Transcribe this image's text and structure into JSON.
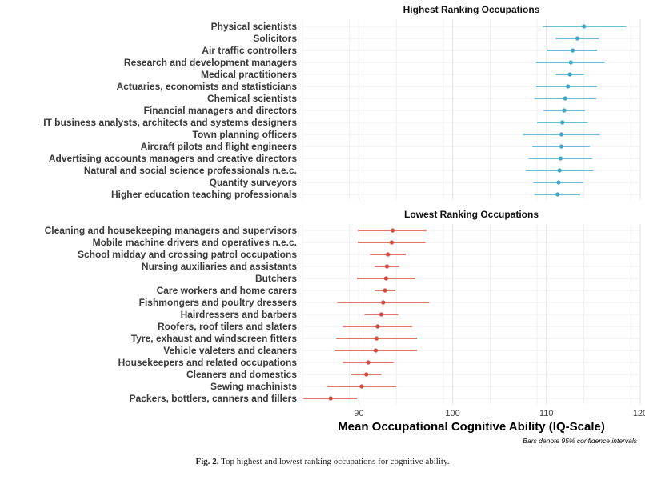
{
  "figure": {
    "caption_label": "Fig. 2.",
    "caption_text": "Top highest and lowest ranking occupations for cognitive ability.",
    "note": "Bars denote 95% confidence intervals"
  },
  "chart_data": {
    "type": "scatter",
    "xlabel": "Mean Occupational Cognitive Ability (IQ-Scale)",
    "xlim": [
      84,
      120
    ],
    "xticks": [
      90,
      100,
      110,
      120
    ],
    "grid": true,
    "panels": [
      {
        "title": "Highest Ranking Occupations",
        "color": "#3aa8c9",
        "rows": [
          {
            "label": "Physical scientists",
            "mean": 114.0,
            "low": 109.6,
            "high": 118.5
          },
          {
            "label": "Solicitors",
            "mean": 113.3,
            "low": 111.0,
            "high": 115.6
          },
          {
            "label": "Air traffic controllers",
            "mean": 112.8,
            "low": 110.1,
            "high": 115.4
          },
          {
            "label": "Research and development managers",
            "mean": 112.6,
            "low": 108.9,
            "high": 116.2
          },
          {
            "label": "Medical practitioners",
            "mean": 112.5,
            "low": 111.0,
            "high": 114.0
          },
          {
            "label": "Actuaries, economists and statisticians",
            "mean": 112.3,
            "low": 108.9,
            "high": 115.4
          },
          {
            "label": "Chemical scientists",
            "mean": 112.0,
            "low": 108.7,
            "high": 115.3
          },
          {
            "label": "Financial managers and directors",
            "mean": 111.9,
            "low": 109.7,
            "high": 114.1
          },
          {
            "label": "IT business analysts, architects and systems designers",
            "mean": 111.7,
            "low": 109.0,
            "high": 114.4
          },
          {
            "label": "Town planning officers",
            "mean": 111.6,
            "low": 107.5,
            "high": 115.7
          },
          {
            "label": "Aircraft pilots and flight engineers",
            "mean": 111.6,
            "low": 108.5,
            "high": 114.6
          },
          {
            "label": "Advertising accounts managers and creative directors",
            "mean": 111.5,
            "low": 108.1,
            "high": 114.9
          },
          {
            "label": "Natural and social science professionals n.e.c.",
            "mean": 111.4,
            "low": 107.8,
            "high": 115.0
          },
          {
            "label": "Quantity surveyors",
            "mean": 111.3,
            "low": 108.6,
            "high": 113.9
          },
          {
            "label": "Higher education teaching professionals",
            "mean": 111.2,
            "low": 108.7,
            "high": 113.6
          }
        ]
      },
      {
        "title": "Lowest Ranking Occupations",
        "color": "#d9493a",
        "rows": [
          {
            "label": "Cleaning and housekeeping managers and supervisors",
            "mean": 93.6,
            "low": 89.9,
            "high": 97.2
          },
          {
            "label": "Mobile machine drivers and operatives n.e.c.",
            "mean": 93.5,
            "low": 89.9,
            "high": 97.1
          },
          {
            "label": "School midday and crossing patrol occupations",
            "mean": 93.1,
            "low": 91.2,
            "high": 95.0
          },
          {
            "label": "Nursing auxiliaries and assistants",
            "mean": 93.0,
            "low": 91.7,
            "high": 94.3
          },
          {
            "label": "Butchers",
            "mean": 92.9,
            "low": 89.8,
            "high": 96.0
          },
          {
            "label": "Care workers and home carers",
            "mean": 92.8,
            "low": 91.7,
            "high": 93.9
          },
          {
            "label": "Fishmongers and poultry dressers",
            "mean": 92.6,
            "low": 87.7,
            "high": 97.5
          },
          {
            "label": "Hairdressers and barbers",
            "mean": 92.4,
            "low": 90.6,
            "high": 94.2
          },
          {
            "label": "Roofers, roof tilers and slaters",
            "mean": 92.0,
            "low": 88.3,
            "high": 95.7
          },
          {
            "label": "Tyre, exhaust and windscreen fitters",
            "mean": 91.9,
            "low": 87.6,
            "high": 96.2
          },
          {
            "label": "Vehicle valeters and cleaners",
            "mean": 91.8,
            "low": 87.4,
            "high": 96.2
          },
          {
            "label": "Housekeepers and related occupations",
            "mean": 91.0,
            "low": 88.3,
            "high": 93.7
          },
          {
            "label": "Cleaners and domestics",
            "mean": 90.8,
            "low": 89.2,
            "high": 92.4
          },
          {
            "label": "Sewing machinists",
            "mean": 90.3,
            "low": 86.6,
            "high": 94.0
          },
          {
            "label": "Packers, bottlers, canners and fillers",
            "mean": 87.0,
            "low": 84.1,
            "high": 89.8
          }
        ]
      }
    ]
  }
}
